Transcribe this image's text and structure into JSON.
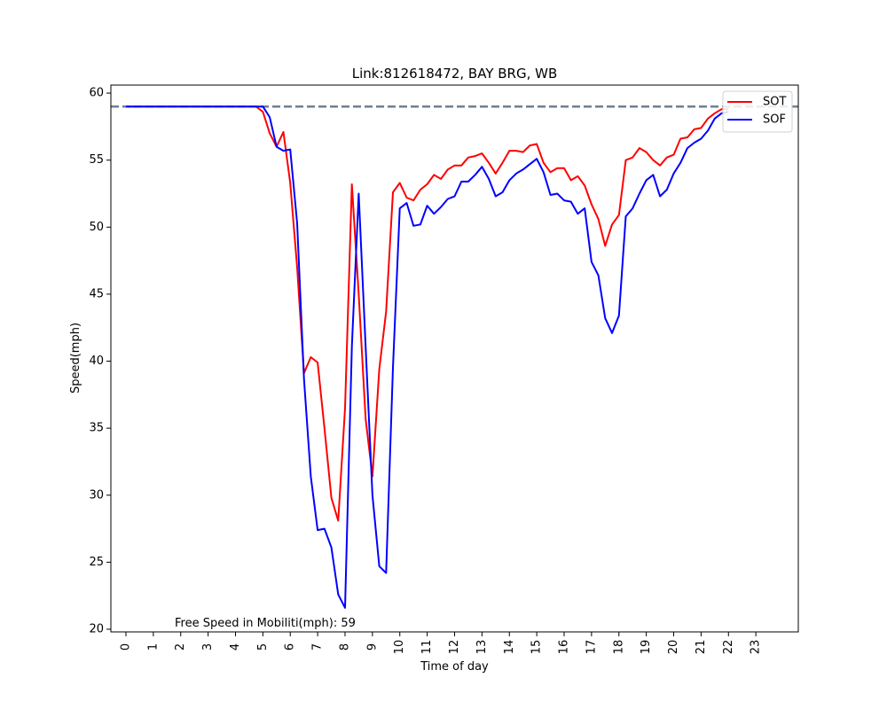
{
  "chart_data": {
    "type": "line",
    "title": "Link:812618472, BAY BRG, WB",
    "xlabel": "Time of day",
    "ylabel": "Speed(mph)",
    "xlim": [
      -0.55,
      24.55
    ],
    "ylim": [
      19.8,
      60.6
    ],
    "x_ticks": [
      0,
      1,
      2,
      3,
      4,
      5,
      6,
      7,
      8,
      9,
      10,
      11,
      12,
      13,
      14,
      15,
      16,
      17,
      18,
      19,
      20,
      21,
      22,
      23
    ],
    "x_tick_labels": [
      "0",
      "1",
      "2",
      "3",
      "4",
      "5",
      "6",
      "7",
      "8",
      "9",
      "10",
      "11",
      "12",
      "13",
      "14",
      "15",
      "16",
      "17",
      "18",
      "19",
      "20",
      "21",
      "22",
      "23"
    ],
    "y_ticks": [
      20,
      25,
      30,
      35,
      40,
      45,
      50,
      55,
      60
    ],
    "y_tick_labels": [
      "20",
      "25",
      "30",
      "35",
      "40",
      "45",
      "50",
      "55",
      "60"
    ],
    "grid": false,
    "legend_position": "top-right",
    "reference_line": {
      "y": 59,
      "color": "#708090",
      "style": "dashed"
    },
    "annotation": "Free Speed in Mobiliti(mph): 59",
    "series": [
      {
        "name": "SOT",
        "color": "#ff0000",
        "x": [
          0,
          0.25,
          0.5,
          0.75,
          1,
          1.25,
          1.5,
          1.75,
          2,
          2.25,
          2.5,
          2.75,
          3,
          3.25,
          3.5,
          3.75,
          4,
          4.25,
          4.5,
          4.75,
          5,
          5.25,
          5.5,
          5.75,
          6,
          6.25,
          6.5,
          6.75,
          7,
          7.25,
          7.5,
          7.75,
          8,
          8.25,
          8.5,
          8.75,
          9,
          9.25,
          9.5,
          9.75,
          10,
          10.25,
          10.5,
          10.75,
          11,
          11.25,
          11.5,
          11.75,
          12,
          12.25,
          12.5,
          12.75,
          13,
          13.25,
          13.5,
          13.75,
          14,
          14.25,
          14.5,
          14.75,
          15,
          15.25,
          15.5,
          15.75,
          16,
          16.25,
          16.5,
          16.75,
          17,
          17.25,
          17.5,
          17.75,
          18,
          18.25,
          18.5,
          18.75,
          19,
          19.25,
          19.5,
          19.75,
          20,
          20.25,
          20.5,
          20.75,
          21,
          21.25,
          21.5,
          21.75,
          22
        ],
        "values": [
          59,
          59,
          59,
          59,
          59,
          59,
          59,
          59,
          59,
          59,
          59,
          59,
          59,
          59,
          59,
          59,
          59,
          59,
          59,
          59,
          58.6,
          57,
          56,
          57.1,
          53.3,
          47,
          39.1,
          40.3,
          39.9,
          35,
          29.8,
          28.1,
          36.5,
          53.2,
          45,
          35.7,
          31.4,
          39.4,
          43.7,
          52.6,
          53.3,
          52.2,
          52,
          52.8,
          53.2,
          53.9,
          53.6,
          54.3,
          54.6,
          54.6,
          55.2,
          55.3,
          55.5,
          54.8,
          54,
          54.8,
          55.7,
          55.7,
          55.6,
          56.1,
          56.2,
          54.8,
          54.1,
          54.4,
          54.4,
          53.5,
          53.8,
          53.1,
          51.7,
          50.6,
          48.6,
          50.2,
          50.9,
          55,
          55.2,
          55.9,
          55.6,
          55,
          54.6,
          55.2,
          55.4,
          56.6,
          56.7,
          57.3,
          57.4,
          58.1,
          58.5,
          58.8,
          58.8
        ]
      },
      {
        "name": "SOF",
        "color": "#0000ff",
        "x": [
          0,
          0.25,
          0.5,
          0.75,
          1,
          1.25,
          1.5,
          1.75,
          2,
          2.25,
          2.5,
          2.75,
          3,
          3.25,
          3.5,
          3.75,
          4,
          4.25,
          4.5,
          4.75,
          5,
          5.25,
          5.5,
          5.75,
          6,
          6.25,
          6.5,
          6.75,
          7,
          7.25,
          7.5,
          7.75,
          8,
          8.25,
          8.5,
          8.75,
          9,
          9.25,
          9.5,
          9.75,
          10,
          10.25,
          10.5,
          10.75,
          11,
          11.25,
          11.5,
          11.75,
          12,
          12.25,
          12.5,
          12.75,
          13,
          13.25,
          13.5,
          13.75,
          14,
          14.25,
          14.5,
          14.75,
          15,
          15.25,
          15.5,
          15.75,
          16,
          16.25,
          16.5,
          16.75,
          17,
          17.25,
          17.5,
          17.75,
          18,
          18.25,
          18.5,
          18.75,
          19,
          19.25,
          19.5,
          19.75,
          20,
          20.25,
          20.5,
          20.75,
          21,
          21.25,
          21.5,
          21.75,
          22
        ],
        "values": [
          59,
          59,
          59,
          59,
          59,
          59,
          59,
          59,
          59,
          59,
          59,
          59,
          59,
          59,
          59,
          59,
          59,
          59,
          59,
          59,
          59,
          58.2,
          56,
          55.7,
          55.8,
          50.3,
          38.7,
          31.4,
          27.4,
          27.5,
          26.1,
          22.6,
          21.6,
          41.1,
          52.5,
          41.1,
          30,
          24.7,
          24.2,
          39.5,
          51.4,
          51.8,
          50.1,
          50.2,
          51.6,
          51,
          51.5,
          52.1,
          52.3,
          53.4,
          53.4,
          53.9,
          54.5,
          53.6,
          52.3,
          52.6,
          53.5,
          54,
          54.3,
          54.7,
          55.1,
          54.1,
          52.4,
          52.5,
          52,
          51.9,
          51,
          51.4,
          47.4,
          46.4,
          43.2,
          42.1,
          43.4,
          50.8,
          51.4,
          52.5,
          53.5,
          53.9,
          52.3,
          52.8,
          54,
          54.8,
          55.9,
          56.3,
          56.6,
          57.2,
          58.1,
          58.5,
          58.6
        ]
      }
    ]
  }
}
